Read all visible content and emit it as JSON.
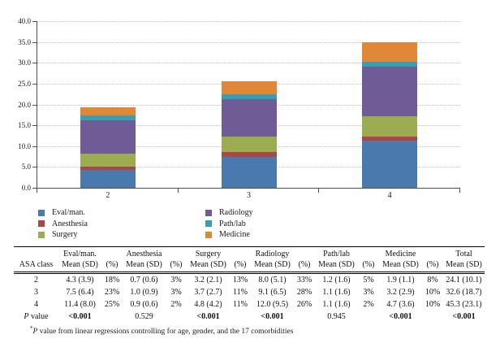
{
  "chart_data": {
    "type": "bar",
    "stacked": true,
    "categories": [
      "2",
      "3",
      "4"
    ],
    "series": [
      {
        "name": "Eval/man.",
        "color": "#4a79ad",
        "values": [
          4.3,
          7.5,
          11.4
        ]
      },
      {
        "name": "Anesthesia",
        "color": "#ae4742",
        "values": [
          0.7,
          1.0,
          0.9
        ]
      },
      {
        "name": "Surgery",
        "color": "#9cad51",
        "values": [
          3.2,
          3.7,
          4.8
        ]
      },
      {
        "name": "Radiology",
        "color": "#6f5b96",
        "values": [
          8.0,
          9.1,
          12.0
        ]
      },
      {
        "name": "Path/lab",
        "color": "#3b9db1",
        "values": [
          1.2,
          1.1,
          1.1
        ]
      },
      {
        "name": "Medicine",
        "color": "#e0883a",
        "values": [
          1.9,
          3.2,
          4.7
        ]
      }
    ],
    "title": "",
    "xlabel": "",
    "ylabel": "",
    "ylim": [
      0,
      40
    ],
    "y_ticks": [
      "40.0",
      "35.0",
      "30.0",
      "25.0",
      "20.0",
      "15.0",
      "10.0",
      "5.0",
      "0.0"
    ],
    "grid": "horizontal-dotted",
    "legend_position": "bottom-two-columns"
  },
  "table": {
    "groups": [
      "Eval/man.",
      "Anesthesia",
      "Surgery",
      "Radiology",
      "Path/lab",
      "Medicine",
      "Total"
    ],
    "corner_header": "ASA class",
    "sub_mean": "Mean (SD)",
    "sub_pct": "(%)",
    "rows": [
      {
        "label": "2",
        "cells": [
          "4.3 (3.9)",
          "18%",
          "0.7 (0.6)",
          "3%",
          "3.2 (2.1)",
          "13%",
          "8.0 (5.1)",
          "33%",
          "1.2 (1.6)",
          "5%",
          "1.9 (1.1)",
          "8%",
          "24.1 (10.1)"
        ]
      },
      {
        "label": "3",
        "cells": [
          "7.5 (6.4)",
          "23%",
          "1.0 (0.9)",
          "3%",
          "3.7 (2.7)",
          "11%",
          "9.1 (6.5)",
          "28%",
          "1.1 (1.6)",
          "3%",
          "3.2 (2.9)",
          "10%",
          "32.6 (18.7)"
        ]
      },
      {
        "label": "4",
        "cells": [
          "11.4 (8.0)",
          "25%",
          "0.9 (0.6)",
          "2%",
          "4.8 (4.2)",
          "11%",
          "12.0 (9.5)",
          "26%",
          "1.1 (1.6)",
          "2%",
          "4.7 (3.6)",
          "10%",
          "45.3 (23.1)"
        ]
      }
    ],
    "p_row": {
      "label_italic": "P",
      "label_rest": " value",
      "cells": [
        "<0.001",
        "",
        "0.529",
        "",
        "<0.001",
        "",
        "<0.001",
        "",
        "0.945",
        "",
        "<0.001",
        "",
        "<0.001"
      ]
    },
    "footnote": {
      "marker": "*",
      "italic": "P",
      "text": " value from linear regressions controlling for age, gender, and the 17 comorbidities"
    }
  }
}
